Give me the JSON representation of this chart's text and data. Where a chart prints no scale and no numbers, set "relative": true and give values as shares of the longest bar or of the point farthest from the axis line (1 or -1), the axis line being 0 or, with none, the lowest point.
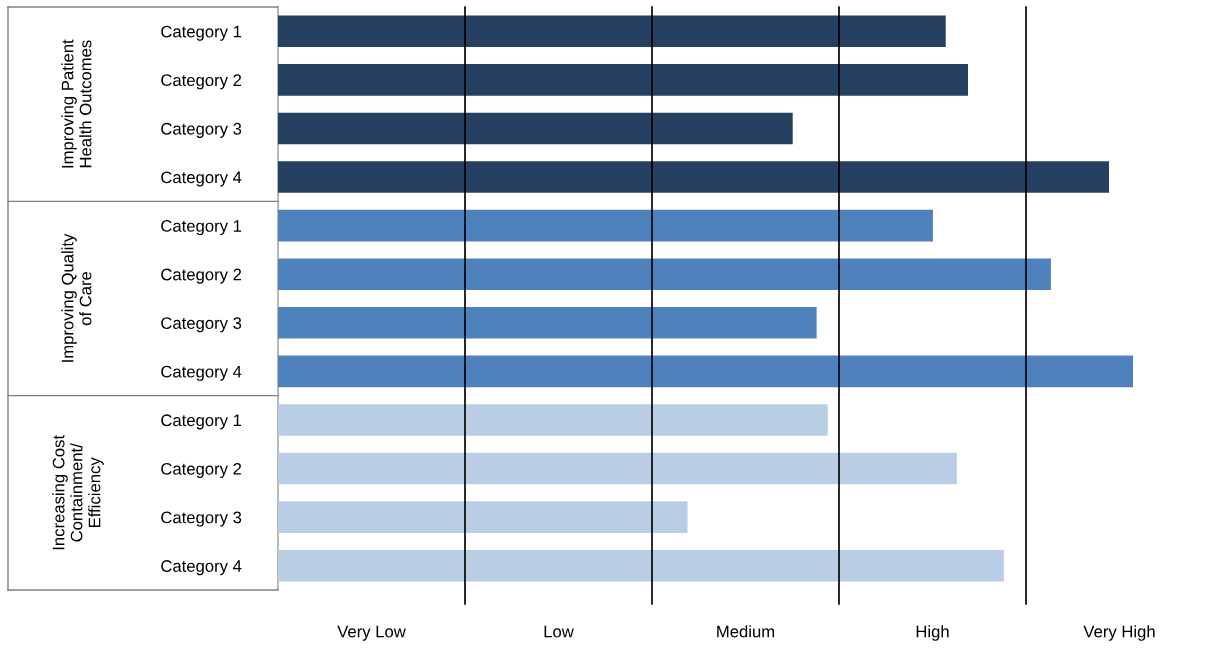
{
  "chart_data": {
    "type": "bar",
    "orientation": "horizontal",
    "relative": true,
    "categories": [
      "Category 1",
      "Category 2",
      "Category 3",
      "Category 4",
      "Category 1",
      "Category 2",
      "Category 3",
      "Category 4",
      "Category 1",
      "Category 2",
      "Category 3",
      "Category 4"
    ],
    "series": [
      {
        "color": "#264061",
        "values": [
          0.781,
          0.807,
          0.602,
          0.972,
          null,
          null,
          null,
          null,
          null,
          null,
          null,
          null
        ]
      },
      {
        "color": "#4f81bd",
        "values": [
          null,
          null,
          null,
          null,
          0.766,
          0.904,
          0.63,
          1,
          null,
          null,
          null,
          null
        ]
      },
      {
        "color": "#b9cde5",
        "values": [
          null,
          null,
          null,
          null,
          null,
          null,
          null,
          null,
          0.643,
          0.794,
          0.479,
          0.849
        ]
      }
    ],
    "annotations": [
      "Improving Patient\nHealth Outcomes",
      "Improving Quality\nof Care",
      "Increasing Cost\nContainment/\nEfficiency",
      "Very Low",
      "Low",
      "Medium",
      "High",
      "Very High"
    ],
    "grid": "x"
  }
}
